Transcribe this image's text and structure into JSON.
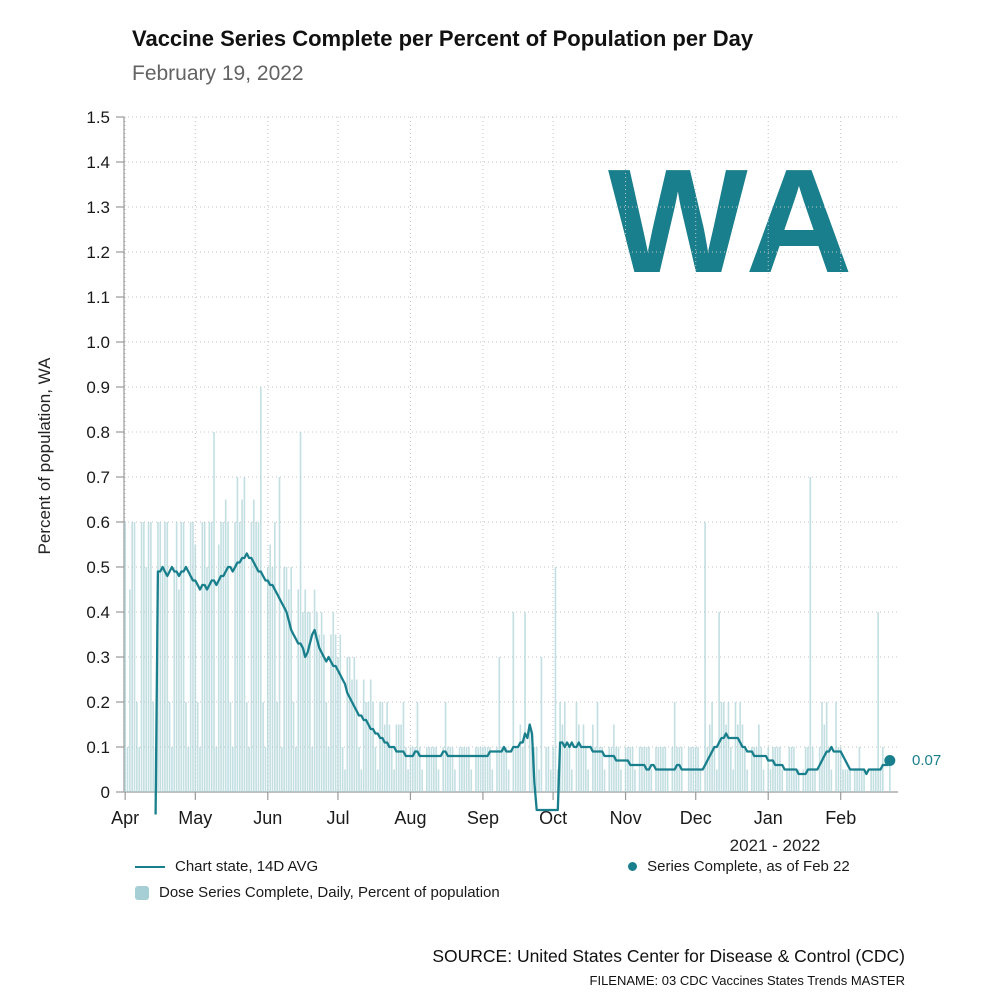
{
  "header": {
    "title": "Vaccine Series Complete per Percent of Population per Day",
    "subtitle": "February 19, 2022"
  },
  "watermark": "WA",
  "legend": {
    "line_label": "Chart state, 14D AVG",
    "bar_label": "Dose Series Complete, Daily, Percent of population",
    "dot_label": "Series Complete, as of Feb 22"
  },
  "footer": {
    "source": "SOURCE: United States Center for Disease & Control (CDC)",
    "filename": "FILENAME: 03 CDC Vaccines States Trends MASTER"
  },
  "colors": {
    "teal_dark": "#1a7f8c",
    "teal_bar": "#a5cfd4",
    "grid": "#c4c4c4",
    "axis": "#9a9a9a",
    "tick_text": "#1a1a1a"
  },
  "chart_data": {
    "type": "bar",
    "title": "Vaccine Series Complete per Percent of Population per Day",
    "xlabel": "2021 - 2022",
    "ylabel": "Percent of population, WA",
    "ylim": [
      0,
      1.5
    ],
    "grid": "dotted, both axes",
    "legend_position": "bottom",
    "y_ticks": [
      "0",
      "0.1",
      "0.2",
      "0.3",
      "0.4",
      "0.5",
      "0.6",
      "0.7",
      "0.8",
      "0.9",
      "1.0",
      "1.1",
      "1.2",
      "1.3",
      "1.4",
      "1.5"
    ],
    "x_ticks": [
      "Apr",
      "May",
      "Jun",
      "Jul",
      "Aug",
      "Sep",
      "Oct",
      "Nov",
      "Dec",
      "Jan",
      "Feb"
    ],
    "month_day_offsets": [
      0,
      30,
      61,
      91,
      122,
      153,
      183,
      214,
      244,
      275,
      306
    ],
    "total_days": 331,
    "series": [
      {
        "name": "Dose Series Complete, Daily, Percent of population",
        "type": "bar",
        "values": [
          0.6,
          0.1,
          0.45,
          0.6,
          0.6,
          0.2,
          0.1,
          0.6,
          0.6,
          0.5,
          0.6,
          0.6,
          0.2,
          0.1,
          0.6,
          0.6,
          0.5,
          0.6,
          0.6,
          0.2,
          0.1,
          0.5,
          0.6,
          0.45,
          0.6,
          0.6,
          0.2,
          0.1,
          0.6,
          0.6,
          0.55,
          0.2,
          0.1,
          0.6,
          0.6,
          0.5,
          0.6,
          0.6,
          0.8,
          0.1,
          0.55,
          0.6,
          0.6,
          0.65,
          0.6,
          0.2,
          0.1,
          0.6,
          0.7,
          0.6,
          0.65,
          0.7,
          0.2,
          0.1,
          0.6,
          0.65,
          0.6,
          0.6,
          0.9,
          0.2,
          0.1,
          0.5,
          0.55,
          0.5,
          0.6,
          0.2,
          0.7,
          0.1,
          0.5,
          0.5,
          0.45,
          0.5,
          0.2,
          0.1,
          0.45,
          0.8,
          0.4,
          0.45,
          0.4,
          0.4,
          0.1,
          0.45,
          0.4,
          0.35,
          0.4,
          0.35,
          0.2,
          0.1,
          0.35,
          0.4,
          0.35,
          0.3,
          0.35,
          0.1,
          0.05,
          0.3,
          0.3,
          0.25,
          0.3,
          0.25,
          0.1,
          0.05,
          0.25,
          0.2,
          0.2,
          0.25,
          0.2,
          0.1,
          0.05,
          0.2,
          0.2,
          0.15,
          0.2,
          0.15,
          0.1,
          0.05,
          0.15,
          0.15,
          0.15,
          0.2,
          0.1,
          0.05,
          0.1,
          0.1,
          0.1,
          0.2,
          0.1,
          0.05,
          0,
          0.1,
          0.1,
          0.1,
          0.1,
          0.1,
          0.05,
          0,
          0.1,
          0.2,
          0.1,
          0.1,
          0.1,
          0.05,
          0,
          0.1,
          0.1,
          0.1,
          0.1,
          0.1,
          0.05,
          0,
          0.1,
          0.1,
          0.1,
          0.1,
          0.1,
          0.1,
          0.1,
          0.05,
          0,
          0.1,
          0.3,
          0.1,
          0.1,
          0.1,
          0.05,
          0,
          0.4,
          0.1,
          0.1,
          0.15,
          0.1,
          0.4,
          0,
          0.15,
          0.1,
          0.1,
          0.1,
          0.05,
          0.3,
          0,
          0.1,
          0.1,
          0.05,
          0.1,
          0.5,
          0.05,
          0.2,
          0.15,
          0.2,
          0.1,
          0.1,
          0.05,
          0,
          0.2,
          0.15,
          0.1,
          0.15,
          0.1,
          0.05,
          0,
          0.15,
          0.1,
          0.2,
          0.1,
          0.1,
          0.05,
          0,
          0.1,
          0.1,
          0.15,
          0.1,
          0.1,
          0.05,
          0,
          0.1,
          0.1,
          0.1,
          0.1,
          0.05,
          0,
          0.1,
          0.1,
          0.1,
          0.1,
          0.1,
          0.05,
          0,
          0.1,
          0.1,
          0.1,
          0.1,
          0.1,
          0.05,
          0,
          0.1,
          0.2,
          0.1,
          0.1,
          0.1,
          0,
          0,
          0.1,
          0.1,
          0.1,
          0.1,
          0.1,
          0.05,
          0,
          0.6,
          0.1,
          0.15,
          0.2,
          0.1,
          0.05,
          0.4,
          0.2,
          0.2,
          0.15,
          0.2,
          0.1,
          0.05,
          0.2,
          0.15,
          0.2,
          0.15,
          0.1,
          0.05,
          0,
          0.1,
          0.1,
          0.1,
          0.15,
          0.1,
          0.05,
          0,
          0.1,
          0.05,
          0.1,
          0.1,
          0.1,
          0.1,
          0.05,
          0,
          0.05,
          0.1,
          0.1,
          0.1,
          0.05,
          0.05,
          0,
          0.05,
          0.1,
          0.1,
          0.7,
          0.1,
          0.05,
          0,
          0.1,
          0.2,
          0.15,
          0.2,
          0.1,
          0.05,
          0,
          0.2,
          0.1,
          0.1,
          0.05,
          0.05,
          0.05,
          0.05,
          0,
          0.05,
          0.05,
          0.1,
          0.05,
          0.05,
          0,
          0,
          0.05,
          0.05,
          0.05,
          0.4,
          0.05,
          0.1,
          0,
          0,
          0.07
        ]
      },
      {
        "name": "Chart state, 14D AVG",
        "type": "line",
        "values": [
          null,
          null,
          null,
          null,
          null,
          null,
          null,
          null,
          null,
          null,
          null,
          null,
          null,
          -0.05,
          0.49,
          0.49,
          0.5,
          0.49,
          0.48,
          0.49,
          0.5,
          0.49,
          0.49,
          0.48,
          0.49,
          0.49,
          0.5,
          0.49,
          0.48,
          0.47,
          0.47,
          0.46,
          0.45,
          0.46,
          0.46,
          0.45,
          0.46,
          0.47,
          0.47,
          0.46,
          0.47,
          0.48,
          0.48,
          0.49,
          0.5,
          0.5,
          0.49,
          0.5,
          0.51,
          0.51,
          0.52,
          0.52,
          0.53,
          0.52,
          0.52,
          0.51,
          0.5,
          0.49,
          0.49,
          0.48,
          0.47,
          0.47,
          0.46,
          0.46,
          0.45,
          0.44,
          0.43,
          0.42,
          0.41,
          0.4,
          0.38,
          0.36,
          0.35,
          0.34,
          0.33,
          0.33,
          0.32,
          0.3,
          0.31,
          0.33,
          0.35,
          0.36,
          0.34,
          0.32,
          0.31,
          0.3,
          0.29,
          0.3,
          0.29,
          0.28,
          0.28,
          0.27,
          0.26,
          0.25,
          0.24,
          0.22,
          0.21,
          0.2,
          0.19,
          0.18,
          0.17,
          0.17,
          0.16,
          0.16,
          0.15,
          0.14,
          0.14,
          0.13,
          0.13,
          0.12,
          0.12,
          0.11,
          0.11,
          0.1,
          0.1,
          0.1,
          0.09,
          0.09,
          0.09,
          0.09,
          0.08,
          0.08,
          0.08,
          0.08,
          0.09,
          0.09,
          0.08,
          0.08,
          0.08,
          0.08,
          0.08,
          0.08,
          0.08,
          0.08,
          0.08,
          0.08,
          0.09,
          0.09,
          0.08,
          0.08,
          0.08,
          0.08,
          0.08,
          0.08,
          0.08,
          0.08,
          0.08,
          0.08,
          0.08,
          0.08,
          0.08,
          0.08,
          0.08,
          0.08,
          0.08,
          0.08,
          0.09,
          0.09,
          0.09,
          0.09,
          0.09,
          0.09,
          0.1,
          0.09,
          0.09,
          0.09,
          0.1,
          0.1,
          0.1,
          0.11,
          0.11,
          0.13,
          0.12,
          0.15,
          0.13,
          0.02,
          -0.04,
          -0.04,
          -0.04,
          -0.04,
          -0.04,
          -0.04,
          -0.04,
          -0.04,
          -0.04,
          -0.04,
          0.11,
          0.11,
          0.1,
          0.11,
          0.1,
          0.11,
          0.1,
          0.1,
          0.11,
          0.1,
          0.1,
          0.1,
          0.1,
          0.1,
          0.09,
          0.09,
          0.09,
          0.09,
          0.09,
          0.08,
          0.08,
          0.08,
          0.08,
          0.08,
          0.07,
          0.07,
          0.07,
          0.07,
          0.07,
          0.07,
          0.06,
          0.06,
          0.06,
          0.06,
          0.06,
          0.06,
          0.06,
          0.05,
          0.05,
          0.06,
          0.06,
          0.05,
          0.05,
          0.05,
          0.05,
          0.05,
          0.05,
          0.05,
          0.05,
          0.05,
          0.06,
          0.06,
          0.05,
          0.05,
          0.05,
          0.05,
          0.05,
          0.05,
          0.05,
          0.05,
          0.05,
          0.05,
          0.06,
          0.07,
          0.08,
          0.09,
          0.1,
          0.1,
          0.11,
          0.12,
          0.12,
          0.13,
          0.12,
          0.12,
          0.12,
          0.12,
          0.12,
          0.11,
          0.1,
          0.1,
          0.09,
          0.09,
          0.09,
          0.08,
          0.08,
          0.08,
          0.08,
          0.08,
          0.08,
          0.07,
          0.07,
          0.07,
          0.06,
          0.06,
          0.06,
          0.06,
          0.05,
          0.05,
          0.05,
          0.05,
          0.05,
          0.05,
          0.04,
          0.04,
          0.04,
          0.04,
          0.05,
          0.05,
          0.05,
          0.05,
          0.05,
          0.06,
          0.07,
          0.08,
          0.09,
          0.09,
          0.1,
          0.09,
          0.09,
          0.09,
          0.09,
          0.08,
          0.07,
          0.06,
          0.05,
          0.05,
          0.05,
          0.05,
          0.05,
          0.05,
          0.05,
          0.04,
          0.05,
          0.05,
          0.05,
          0.05,
          0.05,
          0.05,
          0.06,
          0.06,
          0.06,
          0.07
        ]
      }
    ],
    "point": {
      "name": "Series Complete, as of Feb 22",
      "index": 327,
      "value": 0.07,
      "label": "0.07"
    }
  }
}
